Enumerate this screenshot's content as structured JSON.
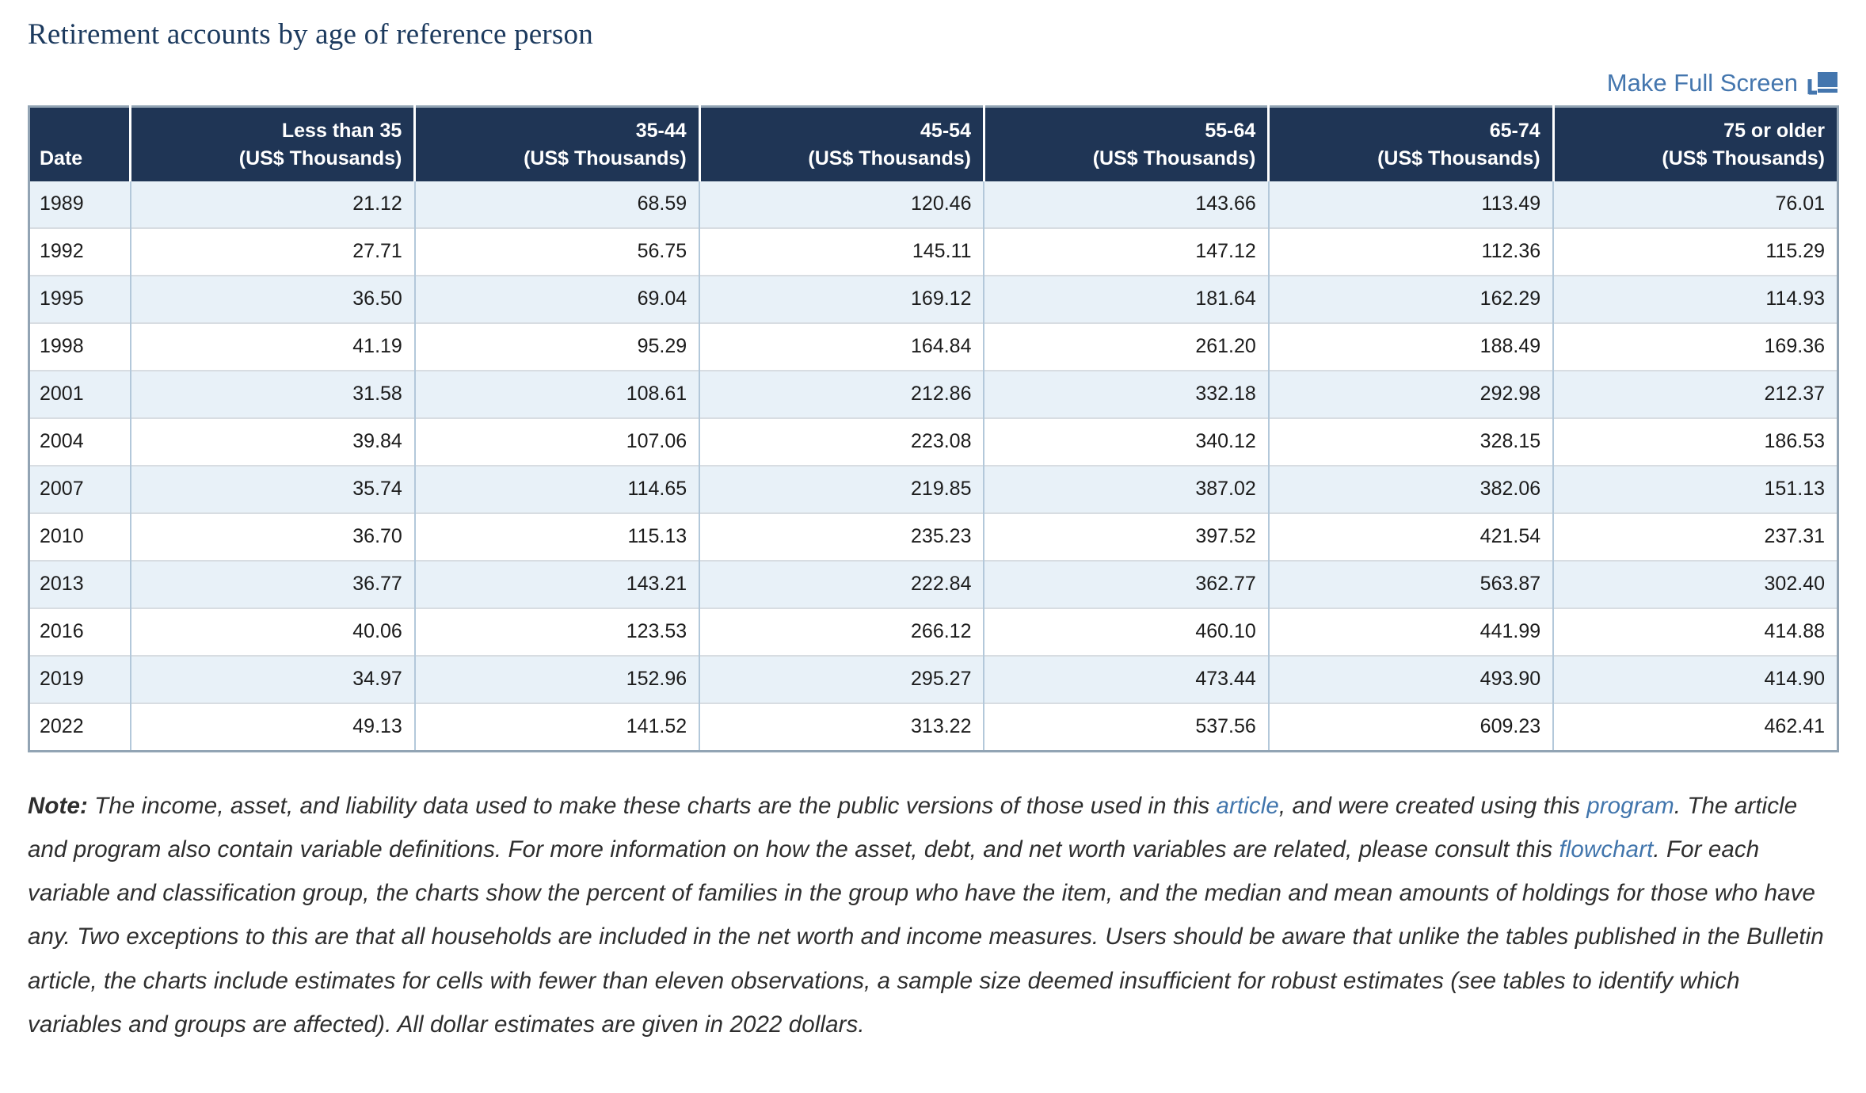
{
  "page": {
    "title": "Retirement accounts by age of reference person",
    "fullscreen_label": "Make Full Screen",
    "fullscreen_icon": "full-screen-windows-icon"
  },
  "colors": {
    "header_bg": "#1f3555",
    "row_alt_bg": "#e8f1f8",
    "title_text": "#1c3a5e",
    "link": "#4476ae",
    "table_border": "#92a4b4"
  },
  "table": {
    "columns": [
      {
        "label": "Date",
        "sub": ""
      },
      {
        "label": "Less than 35",
        "sub": "(US$ Thousands)"
      },
      {
        "label": "35-44",
        "sub": "(US$ Thousands)"
      },
      {
        "label": "45-54",
        "sub": "(US$ Thousands)"
      },
      {
        "label": "55-64",
        "sub": "(US$ Thousands)"
      },
      {
        "label": "65-74",
        "sub": "(US$ Thousands)"
      },
      {
        "label": "75 or older",
        "sub": "(US$ Thousands)"
      }
    ],
    "rows": [
      [
        "1989",
        "21.12",
        "68.59",
        "120.46",
        "143.66",
        "113.49",
        "76.01"
      ],
      [
        "1992",
        "27.71",
        "56.75",
        "145.11",
        "147.12",
        "112.36",
        "115.29"
      ],
      [
        "1995",
        "36.50",
        "69.04",
        "169.12",
        "181.64",
        "162.29",
        "114.93"
      ],
      [
        "1998",
        "41.19",
        "95.29",
        "164.84",
        "261.20",
        "188.49",
        "169.36"
      ],
      [
        "2001",
        "31.58",
        "108.61",
        "212.86",
        "332.18",
        "292.98",
        "212.37"
      ],
      [
        "2004",
        "39.84",
        "107.06",
        "223.08",
        "340.12",
        "328.15",
        "186.53"
      ],
      [
        "2007",
        "35.74",
        "114.65",
        "219.85",
        "387.02",
        "382.06",
        "151.13"
      ],
      [
        "2010",
        "36.70",
        "115.13",
        "235.23",
        "397.52",
        "421.54",
        "237.31"
      ],
      [
        "2013",
        "36.77",
        "143.21",
        "222.84",
        "362.77",
        "563.87",
        "302.40"
      ],
      [
        "2016",
        "40.06",
        "123.53",
        "266.12",
        "460.10",
        "441.99",
        "414.88"
      ],
      [
        "2019",
        "34.97",
        "152.96",
        "295.27",
        "473.44",
        "493.90",
        "414.90"
      ],
      [
        "2022",
        "49.13",
        "141.52",
        "313.22",
        "537.56",
        "609.23",
        "462.41"
      ]
    ]
  },
  "note": {
    "label": "Note:",
    "segments": [
      {
        "text": " The income, asset, and liability data used to make these charts are the public versions of those used in this ",
        "link": false
      },
      {
        "text": "article",
        "link": true
      },
      {
        "text": ", and were created using this ",
        "link": false
      },
      {
        "text": "program",
        "link": true
      },
      {
        "text": ". The article and program also contain variable definitions. For more information on how the asset, debt, and net worth variables are related, please consult this ",
        "link": false
      },
      {
        "text": "flowchart",
        "link": true
      },
      {
        "text": ". For each variable and classification group, the charts show the percent of families in the group who have the item, and the median and mean amounts of holdings for those who have any. Two exceptions to this are that all households are included in the net worth and income measures. Users should be aware that unlike the tables published in the Bulletin article, the charts include estimates for cells with fewer than eleven observations, a sample size deemed insufficient for robust estimates (see tables to identify which variables and groups are affected). All dollar estimates are given in 2022 dollars.",
        "link": false
      }
    ]
  },
  "chart_data": {
    "type": "table",
    "title": "Retirement accounts by age of reference person",
    "units": "US$ Thousands",
    "x_label": "Date",
    "x": [
      1989,
      1992,
      1995,
      1998,
      2001,
      2004,
      2007,
      2010,
      2013,
      2016,
      2019,
      2022
    ],
    "series": [
      {
        "name": "Less than 35 (US$ Thousands)",
        "values": [
          21.12,
          27.71,
          36.5,
          41.19,
          31.58,
          39.84,
          35.74,
          36.7,
          36.77,
          40.06,
          34.97,
          49.13
        ]
      },
      {
        "name": "35-44 (US$ Thousands)",
        "values": [
          68.59,
          56.75,
          69.04,
          95.29,
          108.61,
          107.06,
          114.65,
          115.13,
          143.21,
          123.53,
          152.96,
          141.52
        ]
      },
      {
        "name": "45-54 (US$ Thousands)",
        "values": [
          120.46,
          145.11,
          169.12,
          164.84,
          212.86,
          223.08,
          219.85,
          235.23,
          222.84,
          266.12,
          295.27,
          313.22
        ]
      },
      {
        "name": "55-64 (US$ Thousands)",
        "values": [
          143.66,
          147.12,
          181.64,
          261.2,
          332.18,
          340.12,
          387.02,
          397.52,
          362.77,
          460.1,
          473.44,
          537.56
        ]
      },
      {
        "name": "65-74 (US$ Thousands)",
        "values": [
          113.49,
          112.36,
          162.29,
          188.49,
          292.98,
          328.15,
          382.06,
          421.54,
          563.87,
          441.99,
          493.9,
          609.23
        ]
      },
      {
        "name": "75 or older (US$ Thousands)",
        "values": [
          76.01,
          115.29,
          114.93,
          169.36,
          212.37,
          186.53,
          151.13,
          237.31,
          302.4,
          414.88,
          414.9,
          462.41
        ]
      }
    ]
  }
}
